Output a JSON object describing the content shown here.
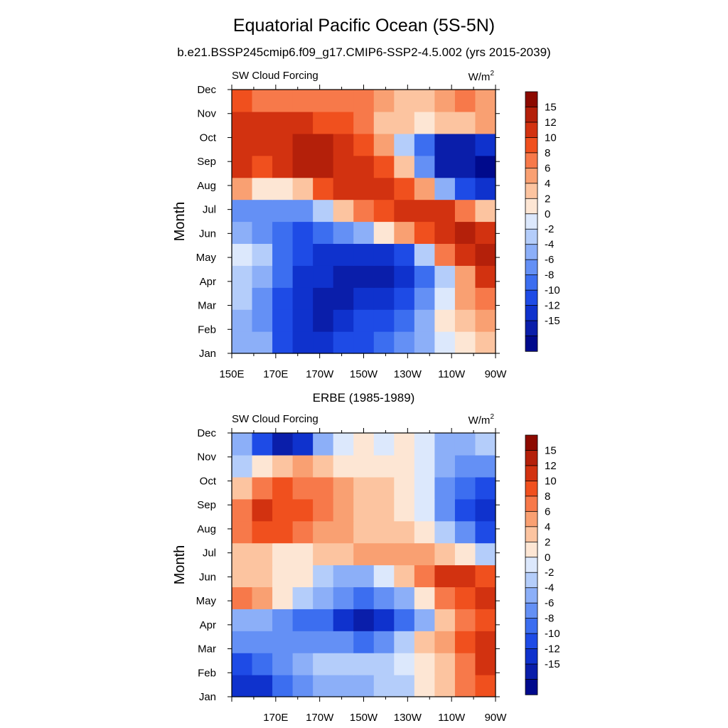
{
  "title": "Equatorial Pacific Ocean (5S-5N)",
  "subtitle": "b.e21.BSSP245cmip6.f09_g17.CMIP6-SSP2-4.5.002 (yrs 2015-2039)",
  "colors": {
    "negative": [
      "#000a8c",
      "#0a1eaa",
      "#0f32cd",
      "#1e4be6",
      "#3c6ef0",
      "#6490f5",
      "#8caff8",
      "#b4cdfa",
      "#dce8fc"
    ],
    "positive": [
      "#fde6d4",
      "#fcc4a0",
      "#f9a072",
      "#f7794a",
      "#f0501e",
      "#d23210",
      "#b4200a",
      "#8c0a00"
    ]
  },
  "chart_data": [
    {
      "type": "heatmap",
      "panel_title": "",
      "left_label": "SW Cloud Forcing",
      "units_label": "W/m",
      "units_superscript": "2",
      "ylabel": "Month",
      "y_ticks": [
        "Jan",
        "Feb",
        "Mar",
        "Apr",
        "May",
        "Jun",
        "Jul",
        "Aug",
        "Sep",
        "Oct",
        "Nov",
        "Dec"
      ],
      "x_ticks": [
        "150E",
        "170E",
        "170W",
        "150W",
        "130W",
        "110W",
        "90W"
      ],
      "x_range": [
        "150E",
        "90W"
      ],
      "colorbar_labels": [
        "15",
        "12",
        "10",
        "8",
        "6",
        "4",
        "2",
        "0",
        "-2",
        "-4",
        "-6",
        "-8",
        "-10",
        "-12",
        "-15"
      ],
      "longitudes": [
        150,
        160,
        170,
        180,
        190,
        200,
        210,
        220,
        230,
        240,
        250,
        260,
        270
      ],
      "months": [
        "Jan",
        "Feb",
        "Mar",
        "Apr",
        "May",
        "Jun",
        "Jul",
        "Aug",
        "Sep",
        "Oct",
        "Nov",
        "Dec"
      ],
      "values": [
        [
          -3,
          -4,
          -9,
          -11,
          -11,
          -9,
          -9,
          -8,
          -6,
          -3,
          1,
          3,
          4
        ],
        [
          -3,
          -5,
          -10,
          -12,
          -13,
          -11,
          -10,
          -10,
          -8,
          -4,
          2,
          5,
          6
        ],
        [
          -2,
          -5,
          -10,
          -12,
          -13,
          -13,
          -12,
          -12,
          -10,
          -6,
          0,
          6,
          8
        ],
        [
          -2,
          -4,
          -8,
          -11,
          -12,
          -13,
          -14,
          -14,
          -12,
          -8,
          -1,
          7,
          12
        ],
        [
          1,
          -2,
          -7,
          -10,
          -11,
          -11,
          -12,
          -12,
          -10,
          -2,
          8,
          14,
          16
        ],
        [
          -4,
          -5,
          -8,
          -9,
          -8,
          -6,
          -3,
          2,
          6,
          10,
          14,
          16,
          14
        ],
        [
          -5,
          -6,
          -6,
          -5,
          -2,
          4,
          8,
          10,
          12,
          13,
          12,
          8,
          4
        ],
        [
          6,
          2,
          2,
          5,
          10,
          12,
          13,
          12,
          10,
          6,
          -4,
          -10,
          -12
        ],
        [
          12,
          11,
          13,
          15,
          16,
          13,
          12,
          10,
          4,
          -6,
          -14,
          -15,
          -16
        ],
        [
          12,
          12,
          14,
          16,
          15,
          12,
          10,
          6,
          -2,
          -8,
          -13,
          -14,
          -12
        ],
        [
          12,
          13,
          12,
          13,
          11,
          10,
          8,
          4,
          4,
          3,
          4,
          5,
          6
        ],
        [
          10,
          8,
          8,
          9,
          8,
          8,
          8,
          6,
          4,
          4,
          6,
          8,
          6
        ]
      ]
    },
    {
      "type": "heatmap",
      "panel_title": "ERBE (1985-1989)",
      "left_label": "SW Cloud Forcing",
      "units_label": "W/m",
      "units_superscript": "2",
      "ylabel": "Month",
      "y_ticks": [
        "Jan",
        "Feb",
        "Mar",
        "Apr",
        "May",
        "Jun",
        "Jul",
        "Aug",
        "Sep",
        "Oct",
        "Nov",
        "Dec"
      ],
      "x_ticks": [
        "170E",
        "170W",
        "150W",
        "130W",
        "110W",
        "90W"
      ],
      "x_range": [
        "150E",
        "90W"
      ],
      "colorbar_labels": [
        "15",
        "12",
        "10",
        "8",
        "6",
        "4",
        "2",
        "0",
        "-2",
        "-4",
        "-6",
        "-8",
        "-10",
        "-12",
        "-15"
      ],
      "longitudes": [
        150,
        160,
        170,
        180,
        190,
        200,
        210,
        220,
        230,
        240,
        250,
        260,
        270
      ],
      "months": [
        "Jan",
        "Feb",
        "Mar",
        "Apr",
        "May",
        "Jun",
        "Jul",
        "Aug",
        "Sep",
        "Oct",
        "Nov",
        "Dec"
      ],
      "values": [
        [
          -12,
          -12,
          -8,
          -5,
          -3,
          -3,
          -4,
          -2,
          -1,
          2,
          4,
          8,
          10
        ],
        [
          -10,
          -8,
          -6,
          -3,
          -1,
          -1,
          -2,
          -1,
          1,
          3,
          5,
          9,
          12
        ],
        [
          -5,
          -5,
          -5,
          -6,
          -5,
          -6,
          -7,
          -5,
          -2,
          4,
          7,
          10,
          12
        ],
        [
          -3,
          -4,
          -5,
          -8,
          -8,
          -12,
          -14,
          -12,
          -8,
          -3,
          4,
          8,
          10
        ],
        [
          8,
          6,
          2,
          -2,
          -4,
          -6,
          -8,
          -6,
          -4,
          2,
          8,
          10,
          12
        ],
        [
          4,
          5,
          3,
          2,
          -2,
          -3,
          -4,
          0,
          5,
          8,
          12,
          14,
          10
        ],
        [
          4,
          4,
          3,
          3,
          4,
          5,
          6,
          6,
          6,
          6,
          4,
          2,
          -2
        ],
        [
          8,
          10,
          10,
          8,
          6,
          6,
          5,
          5,
          4,
          2,
          -2,
          -6,
          -10
        ],
        [
          8,
          12,
          11,
          10,
          8,
          6,
          5,
          4,
          3,
          0,
          -6,
          -10,
          -12
        ],
        [
          4,
          8,
          10,
          9,
          8,
          6,
          5,
          4,
          3,
          0,
          -5,
          -8,
          -10
        ],
        [
          -2,
          2,
          5,
          6,
          4,
          3,
          3,
          2,
          2,
          1,
          -3,
          -6,
          -6
        ],
        [
          -4,
          -10,
          -14,
          -12,
          -4,
          1,
          2,
          1,
          2,
          0,
          -3,
          -4,
          -2
        ]
      ]
    }
  ]
}
